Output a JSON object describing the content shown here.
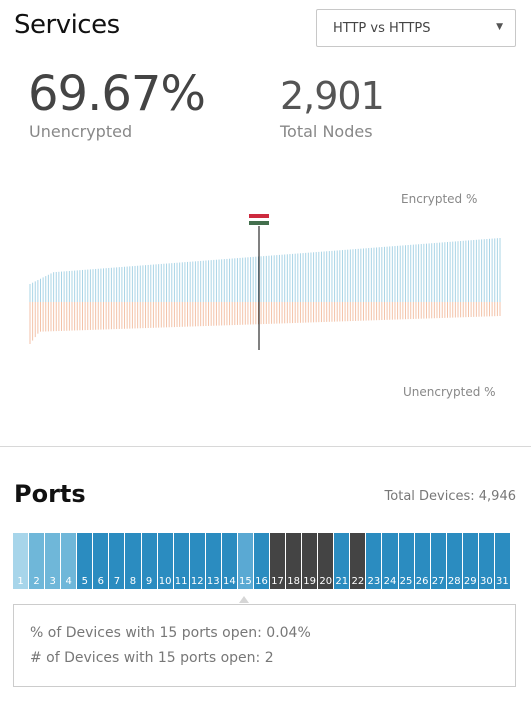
{
  "services": {
    "title": "Services",
    "dropdown": {
      "selected": "HTTP vs HTTPS",
      "icon": "caret-down-icon"
    },
    "unencrypted_value": "69.67%",
    "unencrypted_label": "Unencrypted",
    "nodes_value": "2,901",
    "nodes_label": "Total Nodes",
    "chart_top_label": "Encrypted %",
    "chart_bottom_label": "Unencrypted %",
    "flag_colors": [
      "#cd2a3e",
      "#ffffff",
      "#436f4d"
    ],
    "colors": {
      "encrypted": "#a9d4e6",
      "unencrypted": "#f3c2a8",
      "marker": "#000000"
    }
  },
  "ports": {
    "title": "Ports",
    "total_devices": "Total Devices: 4,946",
    "selected_port": 15,
    "cells": [
      {
        "label": "1",
        "color": "#a7d5ea"
      },
      {
        "label": "2",
        "color": "#6fb7d9"
      },
      {
        "label": "3",
        "color": "#6fb7d9"
      },
      {
        "label": "4",
        "color": "#6fb7d9"
      },
      {
        "label": "5",
        "color": "#2b8cc0"
      },
      {
        "label": "6",
        "color": "#2b8cc0"
      },
      {
        "label": "7",
        "color": "#2b8cc0"
      },
      {
        "label": "8",
        "color": "#2b8cc0"
      },
      {
        "label": "9",
        "color": "#2b8cc0"
      },
      {
        "label": "10",
        "color": "#2b8cc0"
      },
      {
        "label": "11",
        "color": "#2b8cc0"
      },
      {
        "label": "12",
        "color": "#2b8cc0"
      },
      {
        "label": "13",
        "color": "#2b8cc0"
      },
      {
        "label": "14",
        "color": "#2b8cc0"
      },
      {
        "label": "15",
        "color": "#5aa9d3"
      },
      {
        "label": "16",
        "color": "#2b8cc0"
      },
      {
        "label": "17",
        "color": "#444444"
      },
      {
        "label": "18",
        "color": "#444444"
      },
      {
        "label": "19",
        "color": "#444444"
      },
      {
        "label": "20",
        "color": "#444444"
      },
      {
        "label": "21",
        "color": "#2b8cc0"
      },
      {
        "label": "22",
        "color": "#444444"
      },
      {
        "label": "23",
        "color": "#2b8cc0"
      },
      {
        "label": "24",
        "color": "#2b8cc0"
      },
      {
        "label": "25",
        "color": "#2b8cc0"
      },
      {
        "label": "26",
        "color": "#2b8cc0"
      },
      {
        "label": "27",
        "color": "#2b8cc0"
      },
      {
        "label": "28",
        "color": "#2b8cc0"
      },
      {
        "label": "29",
        "color": "#2b8cc0"
      },
      {
        "label": "30",
        "color": "#2b8cc0"
      },
      {
        "label": "31",
        "color": "#2b8cc0"
      }
    ],
    "info_line1": "% of Devices with 15 ports open: 0.04%",
    "info_line2": "# of Devices with 15 ports open: 2"
  }
}
